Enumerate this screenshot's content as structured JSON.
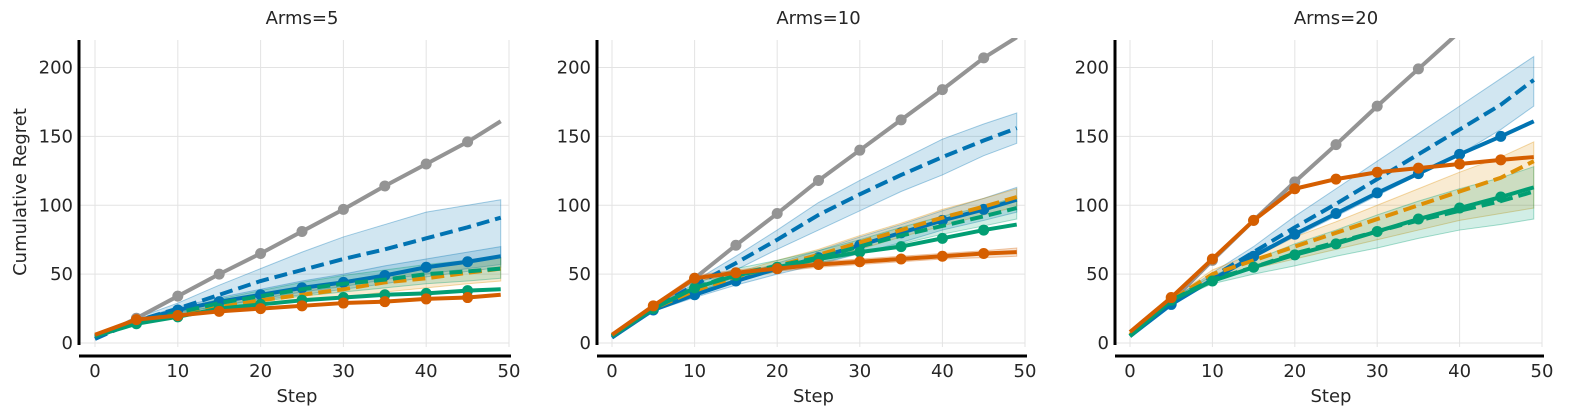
{
  "figure": {
    "ylabel": "Cumulative Regret"
  },
  "chart_data": [
    {
      "type": "line",
      "title": "Arms=5",
      "xlabel": "Step",
      "ylabel": "Cumulative Regret",
      "xlim": [
        0,
        50
      ],
      "ylim": [
        0,
        220
      ],
      "xticks": [
        0,
        10,
        20,
        30,
        40,
        50
      ],
      "yticks": [
        0,
        50,
        100,
        150,
        200
      ],
      "grid": true,
      "series": [
        {
          "color": "#949494",
          "style": "solid",
          "markers": true,
          "band": false,
          "x": [
            0,
            5,
            10,
            15,
            20,
            25,
            30,
            35,
            40,
            45,
            49
          ],
          "y": [
            3,
            18,
            34,
            50,
            65,
            81,
            97,
            114,
            130,
            146,
            161
          ]
        },
        {
          "color": "#0173b2",
          "style": "dashed",
          "markers": false,
          "band": true,
          "x": [
            0,
            5,
            10,
            15,
            20,
            25,
            30,
            35,
            40,
            45,
            49
          ],
          "y": [
            3,
            16,
            25,
            35,
            45,
            53,
            61,
            68,
            76,
            84,
            91
          ],
          "lower": [
            3,
            15,
            21,
            27,
            32,
            37,
            41,
            46,
            50,
            54,
            57
          ],
          "upper": [
            3,
            18,
            29,
            42,
            54,
            66,
            77,
            86,
            95,
            100,
            104
          ]
        },
        {
          "color": "#0173b2",
          "style": "solid",
          "markers": true,
          "band": true,
          "x": [
            0,
            5,
            10,
            15,
            20,
            25,
            30,
            35,
            40,
            45,
            49
          ],
          "y": [
            4,
            16,
            24,
            30,
            35,
            40,
            44,
            49,
            55,
            59,
            63
          ],
          "lower": [
            4,
            15,
            22,
            27,
            31,
            35,
            39,
            43,
            48,
            52,
            55
          ],
          "upper": [
            4,
            17,
            26,
            33,
            39,
            45,
            50,
            56,
            61,
            66,
            70
          ]
        },
        {
          "color": "#de8f05",
          "style": "dashed",
          "markers": false,
          "band": true,
          "x": [
            0,
            5,
            10,
            15,
            20,
            25,
            30,
            35,
            40,
            45,
            49
          ],
          "y": [
            5,
            15,
            21,
            26,
            31,
            35,
            39,
            44,
            47,
            51,
            54
          ],
          "lower": [
            5,
            14,
            19,
            23,
            27,
            30,
            33,
            37,
            40,
            43,
            45
          ],
          "upper": [
            5,
            16,
            23,
            29,
            35,
            40,
            45,
            50,
            54,
            58,
            62
          ]
        },
        {
          "color": "#029e73",
          "style": "dashed",
          "markers": false,
          "band": true,
          "x": [
            0,
            5,
            10,
            15,
            20,
            25,
            30,
            35,
            40,
            45,
            49
          ],
          "y": [
            5,
            15,
            22,
            29,
            34,
            39,
            43,
            46,
            50,
            52,
            54
          ],
          "lower": [
            5,
            14,
            20,
            26,
            30,
            34,
            37,
            40,
            43,
            45,
            47
          ],
          "upper": [
            5,
            16,
            24,
            32,
            38,
            44,
            49,
            53,
            57,
            60,
            62
          ]
        },
        {
          "color": "#029e73",
          "style": "solid",
          "markers": true,
          "band": false,
          "x": [
            0,
            5,
            10,
            15,
            20,
            25,
            30,
            35,
            40,
            45,
            49
          ],
          "y": [
            5,
            14,
            19,
            25,
            28,
            31,
            33,
            35,
            36,
            38,
            39
          ]
        },
        {
          "color": "#d55e00",
          "style": "solid",
          "markers": true,
          "band": false,
          "x": [
            0,
            5,
            10,
            15,
            20,
            25,
            30,
            35,
            40,
            45,
            49
          ],
          "y": [
            6,
            17,
            20,
            23,
            25,
            27,
            29,
            30,
            32,
            33,
            35
          ]
        }
      ]
    },
    {
      "type": "line",
      "title": "Arms=10",
      "xlabel": "Step",
      "ylabel": "",
      "xlim": [
        0,
        50
      ],
      "ylim": [
        0,
        220
      ],
      "xticks": [
        0,
        10,
        20,
        30,
        40,
        50
      ],
      "yticks": [
        0,
        50,
        100,
        150,
        200
      ],
      "grid": true,
      "series": [
        {
          "color": "#949494",
          "style": "solid",
          "markers": true,
          "band": false,
          "x": [
            0,
            5,
            10,
            15,
            20,
            25,
            30,
            35,
            40,
            45,
            49
          ],
          "y": [
            4,
            25,
            47,
            71,
            94,
            118,
            140,
            162,
            184,
            207,
            222
          ]
        },
        {
          "color": "#0173b2",
          "style": "dashed",
          "markers": false,
          "band": true,
          "x": [
            0,
            5,
            10,
            15,
            20,
            25,
            30,
            35,
            40,
            45,
            49
          ],
          "y": [
            4,
            25,
            42,
            58,
            75,
            93,
            108,
            122,
            135,
            147,
            156
          ],
          "lower": [
            4,
            24,
            39,
            53,
            68,
            82,
            96,
            110,
            122,
            136,
            145
          ],
          "upper": [
            4,
            26,
            45,
            63,
            82,
            102,
            118,
            133,
            148,
            159,
            167
          ]
        },
        {
          "color": "#0173b2",
          "style": "solid",
          "markers": true,
          "band": true,
          "x": [
            0,
            5,
            10,
            15,
            20,
            25,
            30,
            35,
            40,
            45,
            49
          ],
          "y": [
            4,
            24,
            35,
            45,
            54,
            62,
            71,
            80,
            89,
            97,
            104
          ],
          "lower": [
            4,
            23,
            33,
            42,
            50,
            57,
            65,
            73,
            82,
            89,
            95
          ],
          "upper": [
            4,
            25,
            37,
            48,
            58,
            67,
            77,
            86,
            96,
            105,
            113
          ]
        },
        {
          "color": "#de8f05",
          "style": "dashed",
          "markers": false,
          "band": true,
          "x": [
            0,
            5,
            10,
            15,
            20,
            25,
            30,
            35,
            40,
            45,
            49
          ],
          "y": [
            5,
            25,
            38,
            48,
            56,
            64,
            73,
            82,
            91,
            99,
            106
          ],
          "lower": [
            5,
            24,
            36,
            45,
            52,
            60,
            68,
            77,
            85,
            93,
            99
          ],
          "upper": [
            5,
            26,
            40,
            51,
            60,
            68,
            78,
            87,
            97,
            105,
            112
          ]
        },
        {
          "color": "#029e73",
          "style": "dashed",
          "markers": false,
          "band": true,
          "x": [
            0,
            5,
            10,
            15,
            20,
            25,
            30,
            35,
            40,
            45,
            49
          ],
          "y": [
            5,
            25,
            40,
            50,
            56,
            62,
            70,
            78,
            85,
            92,
            98
          ],
          "lower": [
            5,
            24,
            37,
            46,
            52,
            58,
            65,
            72,
            79,
            85,
            90
          ],
          "upper": [
            5,
            26,
            43,
            54,
            60,
            67,
            75,
            84,
            92,
            99,
            106
          ]
        },
        {
          "color": "#029e73",
          "style": "solid",
          "markers": true,
          "band": false,
          "x": [
            0,
            5,
            10,
            15,
            20,
            25,
            30,
            35,
            40,
            45,
            49
          ],
          "y": [
            5,
            25,
            40,
            49,
            55,
            61,
            66,
            70,
            76,
            82,
            86
          ]
        },
        {
          "color": "#d55e00",
          "style": "solid",
          "markers": true,
          "band": true,
          "x": [
            0,
            5,
            10,
            15,
            20,
            25,
            30,
            35,
            40,
            45,
            49
          ],
          "y": [
            6,
            27,
            47,
            51,
            54,
            57,
            59,
            61,
            63,
            65,
            66
          ],
          "lower": [
            6,
            26,
            45,
            49,
            52,
            55,
            57,
            59,
            61,
            62,
            63
          ],
          "upper": [
            6,
            28,
            49,
            53,
            56,
            59,
            61,
            63,
            65,
            67,
            69
          ]
        }
      ]
    },
    {
      "type": "line",
      "title": "Arms=20",
      "xlabel": "Step",
      "ylabel": "",
      "xlim": [
        0,
        50
      ],
      "ylim": [
        0,
        220
      ],
      "xticks": [
        0,
        10,
        20,
        30,
        40,
        50
      ],
      "yticks": [
        0,
        50,
        100,
        150,
        200
      ],
      "grid": true,
      "series": [
        {
          "color": "#949494",
          "style": "solid",
          "markers": true,
          "band": false,
          "x": [
            0,
            5,
            10,
            15,
            20,
            25,
            30,
            35,
            40
          ],
          "y": [
            5,
            30,
            60,
            89,
            117,
            144,
            172,
            199,
            226
          ]
        },
        {
          "color": "#0173b2",
          "style": "dashed",
          "markers": false,
          "band": true,
          "x": [
            0,
            5,
            10,
            15,
            20,
            25,
            30,
            35,
            40,
            45,
            49
          ],
          "y": [
            5,
            30,
            48,
            66,
            84,
            101,
            119,
            137,
            155,
            173,
            191
          ],
          "lower": [
            5,
            29,
            46,
            62,
            77,
            92,
            107,
            122,
            137,
            155,
            172
          ],
          "upper": [
            5,
            31,
            51,
            70,
            92,
            112,
            132,
            152,
            172,
            192,
            208
          ]
        },
        {
          "color": "#0173b2",
          "style": "solid",
          "markers": true,
          "band": false,
          "x": [
            0,
            5,
            10,
            15,
            20,
            25,
            30,
            35,
            40,
            45,
            49
          ],
          "y": [
            5,
            28,
            46,
            63,
            79,
            94,
            109,
            123,
            137,
            150,
            161
          ]
        },
        {
          "color": "#de8f05",
          "style": "dashed",
          "markers": false,
          "band": true,
          "x": [
            0,
            5,
            10,
            15,
            20,
            25,
            30,
            35,
            40,
            45,
            49
          ],
          "y": [
            6,
            31,
            50,
            60,
            70,
            80,
            90,
            100,
            110,
            120,
            132
          ],
          "lower": [
            6,
            30,
            47,
            54,
            61,
            68,
            75,
            82,
            89,
            94,
            98
          ],
          "upper": [
            6,
            32,
            53,
            65,
            77,
            88,
            100,
            112,
            124,
            135,
            146
          ]
        },
        {
          "color": "#029e73",
          "style": "dashed",
          "markers": false,
          "band": true,
          "x": [
            0,
            5,
            10,
            15,
            20,
            25,
            30,
            35,
            40,
            45,
            49
          ],
          "y": [
            5,
            31,
            46,
            55,
            65,
            73,
            81,
            89,
            96,
            103,
            110
          ],
          "lower": [
            5,
            30,
            43,
            50,
            56,
            63,
            69,
            76,
            82,
            86,
            90
          ],
          "upper": [
            5,
            32,
            49,
            60,
            72,
            82,
            93,
            103,
            112,
            120,
            128
          ]
        },
        {
          "color": "#029e73",
          "style": "solid",
          "markers": true,
          "band": false,
          "x": [
            0,
            5,
            10,
            15,
            20,
            25,
            30,
            35,
            40,
            45,
            49
          ],
          "y": [
            5,
            31,
            45,
            55,
            64,
            72,
            81,
            90,
            98,
            106,
            113
          ]
        },
        {
          "color": "#d55e00",
          "style": "solid",
          "markers": true,
          "band": false,
          "x": [
            0,
            5,
            10,
            15,
            20,
            25,
            30,
            35,
            40,
            45,
            49
          ],
          "y": [
            8,
            33,
            61,
            89,
            112,
            119,
            124,
            127,
            130,
            133,
            135
          ]
        }
      ]
    }
  ]
}
